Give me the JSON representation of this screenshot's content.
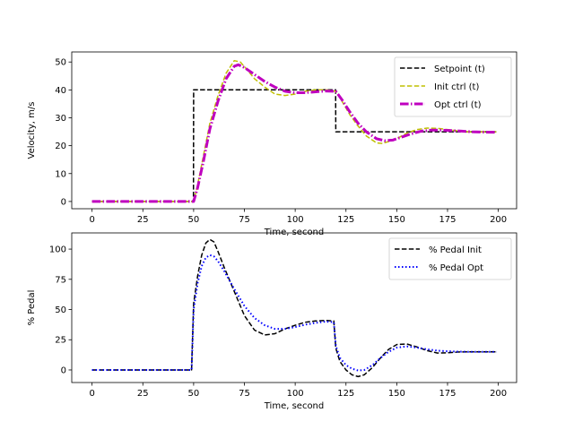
{
  "chart_data": [
    {
      "type": "line",
      "xlabel": "Time, second",
      "ylabel": "Velocity, m/s",
      "xlim": [
        -10,
        209
      ],
      "ylim": [
        -2.6,
        53.6
      ],
      "xticks": [
        "0",
        "25",
        "50",
        "75",
        "100",
        "125",
        "150",
        "175",
        "200"
      ],
      "yticks": [
        "0",
        "10",
        "20",
        "30",
        "40",
        "50"
      ],
      "legend_position": "top-right",
      "grid": false,
      "series": [
        {
          "name": "Setpoint (t)",
          "color": "#000000",
          "style": "dashed",
          "x": [
            0,
            49.9,
            50,
            119.9,
            120,
            199
          ],
          "y": [
            0,
            0,
            40,
            40,
            25,
            25
          ]
        },
        {
          "name": "Init ctrl (t)",
          "color": "#bfbf00",
          "style": "dashed",
          "x": [
            0,
            48,
            50,
            52,
            55,
            58,
            62,
            66,
            70,
            73,
            76,
            80,
            85,
            90,
            95,
            100,
            105,
            110,
            115,
            120,
            123,
            127,
            131,
            135,
            140,
            143,
            146,
            150,
            155,
            160,
            165,
            170,
            175,
            180,
            185,
            190,
            195,
            199
          ],
          "y": [
            0,
            0,
            0,
            6,
            17,
            28,
            38,
            46,
            50.5,
            50,
            47.5,
            44,
            41,
            38.5,
            38,
            38.5,
            39.5,
            40,
            40,
            39.5,
            36,
            31,
            27,
            23.5,
            21,
            20.8,
            21.5,
            22.5,
            24.5,
            25.8,
            26.3,
            26.2,
            25.8,
            25.3,
            25,
            25,
            25,
            25
          ]
        },
        {
          "name": "Opt ctrl (t)",
          "color": "#bf00bf",
          "style": "dash-dot",
          "x": [
            0,
            48,
            50,
            52,
            55,
            58,
            62,
            66,
            70,
            72,
            75,
            80,
            85,
            90,
            95,
            100,
            105,
            110,
            115,
            120,
            123,
            127,
            131,
            135,
            140,
            144,
            148,
            152,
            157,
            162,
            167,
            172,
            177,
            182,
            187,
            192,
            199
          ],
          "y": [
            0,
            0,
            0,
            5,
            15,
            26,
            36,
            44,
            48.5,
            49,
            48,
            45.5,
            43,
            41,
            39.5,
            39,
            39,
            39.3,
            39.6,
            39.5,
            36.5,
            32,
            28,
            25,
            22.5,
            21.8,
            22,
            23,
            24.2,
            25.2,
            25.6,
            25.6,
            25.4,
            25.2,
            25,
            24.9,
            24.8
          ]
        }
      ]
    },
    {
      "type": "line",
      "xlabel": "Time, second",
      "ylabel": "% Pedal",
      "xlim": [
        -10,
        209
      ],
      "ylim": [
        -10.4,
        113.4
      ],
      "xticks": [
        "0",
        "25",
        "50",
        "75",
        "100",
        "125",
        "150",
        "175",
        "200"
      ],
      "yticks": [
        "0",
        "25",
        "50",
        "75",
        "100"
      ],
      "legend_position": "top-right",
      "grid": false,
      "series": [
        {
          "name": "% Pedal Init",
          "color": "#000000",
          "style": "dashed",
          "x": [
            0,
            48,
            49,
            50,
            52,
            54,
            56,
            58,
            60,
            62,
            65,
            70,
            75,
            80,
            85,
            90,
            95,
            100,
            105,
            110,
            115,
            119,
            120,
            122,
            125,
            128,
            131,
            134,
            138,
            142,
            146,
            150,
            155,
            160,
            165,
            170,
            175,
            180,
            185,
            190,
            195,
            199
          ],
          "y": [
            0,
            0,
            0,
            55,
            78,
            95,
            105,
            108,
            106,
            98,
            85,
            65,
            45,
            33,
            29,
            30,
            34,
            37,
            39.5,
            40.5,
            41,
            40.5,
            18,
            7,
            0,
            -4,
            -5.5,
            -4,
            2,
            10,
            17,
            21,
            21.5,
            19,
            16,
            14,
            14.2,
            14.8,
            15,
            15,
            15,
            15
          ]
        },
        {
          "name": "% Pedal Opt",
          "color": "#0000ff",
          "style": "dotted",
          "x": [
            0,
            48,
            49,
            50,
            52,
            54,
            56,
            58,
            60,
            62,
            65,
            70,
            75,
            80,
            85,
            90,
            95,
            100,
            105,
            110,
            115,
            119,
            120,
            122,
            125,
            128,
            131,
            134,
            138,
            142,
            146,
            150,
            155,
            160,
            165,
            170,
            175,
            180,
            185,
            190,
            195,
            199
          ],
          "y": [
            0,
            0,
            0,
            50,
            72,
            86,
            93,
            95,
            94,
            90,
            82,
            67,
            53,
            43,
            37,
            34,
            34,
            35.5,
            37.5,
            39,
            40,
            39.5,
            20,
            10,
            4,
            1,
            -0.5,
            0,
            4,
            10,
            15,
            18.5,
            19.5,
            18.5,
            17,
            16,
            15.5,
            15.2,
            15,
            15,
            15,
            15
          ]
        }
      ]
    }
  ]
}
